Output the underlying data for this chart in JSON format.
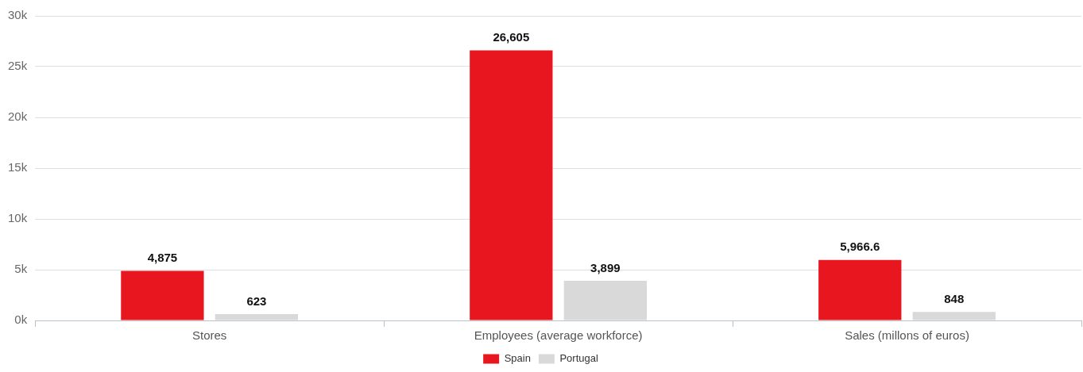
{
  "chart_data": {
    "type": "bar",
    "categories": [
      "Stores",
      "Employees (average workforce)",
      "Sales (millons of euros)"
    ],
    "series": [
      {
        "name": "Spain",
        "color": "#e8161f",
        "values": [
          4875,
          26605,
          5966.6
        ],
        "value_labels": [
          "4,875",
          "26,605",
          "5,966.6"
        ]
      },
      {
        "name": "Portugal",
        "color": "#d9d9d9",
        "values": [
          623,
          3899,
          848
        ],
        "value_labels": [
          "623",
          "3,899",
          "848"
        ]
      }
    ],
    "ylim": [
      0,
      30000
    ],
    "yticks": [
      {
        "value": 0,
        "label": "0k"
      },
      {
        "value": 5000,
        "label": "5k"
      },
      {
        "value": 10000,
        "label": "10k"
      },
      {
        "value": 15000,
        "label": "15k"
      },
      {
        "value": 20000,
        "label": "20k"
      },
      {
        "value": 25000,
        "label": "25k"
      },
      {
        "value": 30000,
        "label": "30k"
      }
    ],
    "grid": "y",
    "legend": "bottom"
  }
}
